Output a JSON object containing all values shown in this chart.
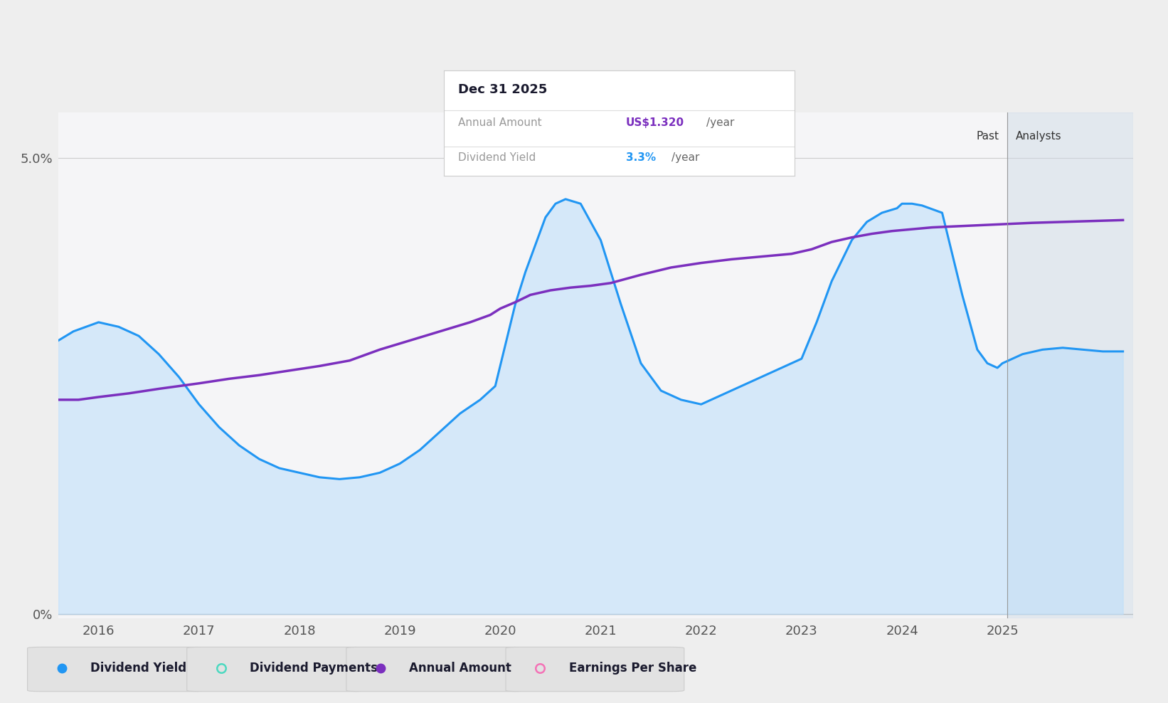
{
  "background_color": "#eeeeee",
  "chart_bg": "#f5f5f7",
  "x_min": 2015.6,
  "x_max": 2026.3,
  "y_min": -0.05,
  "y_max": 5.5,
  "analyst_start": 2025.05,
  "dividend_yield": {
    "color": "#2196F3",
    "fill_color": "#bbdefb",
    "fill_alpha": 0.55,
    "linewidth": 2.2,
    "x": [
      2015.6,
      2015.75,
      2016.0,
      2016.2,
      2016.4,
      2016.6,
      2016.8,
      2017.0,
      2017.2,
      2017.4,
      2017.6,
      2017.8,
      2018.0,
      2018.2,
      2018.4,
      2018.6,
      2018.8,
      2019.0,
      2019.2,
      2019.4,
      2019.6,
      2019.8,
      2019.95,
      2020.05,
      2020.15,
      2020.25,
      2020.35,
      2020.45,
      2020.55,
      2020.65,
      2020.8,
      2021.0,
      2021.2,
      2021.4,
      2021.6,
      2021.8,
      2022.0,
      2022.2,
      2022.4,
      2022.6,
      2022.8,
      2023.0,
      2023.15,
      2023.3,
      2023.5,
      2023.65,
      2023.8,
      2023.95,
      2024.0,
      2024.1,
      2024.2,
      2024.4,
      2024.6,
      2024.75,
      2024.85,
      2024.95,
      2025.0,
      2025.1,
      2025.2,
      2025.4,
      2025.6,
      2025.8,
      2026.0,
      2026.2
    ],
    "y": [
      3.0,
      3.1,
      3.2,
      3.15,
      3.05,
      2.85,
      2.6,
      2.3,
      2.05,
      1.85,
      1.7,
      1.6,
      1.55,
      1.5,
      1.48,
      1.5,
      1.55,
      1.65,
      1.8,
      2.0,
      2.2,
      2.35,
      2.5,
      2.95,
      3.4,
      3.75,
      4.05,
      4.35,
      4.5,
      4.55,
      4.5,
      4.1,
      3.4,
      2.75,
      2.45,
      2.35,
      2.3,
      2.4,
      2.5,
      2.6,
      2.7,
      2.8,
      3.2,
      3.65,
      4.1,
      4.3,
      4.4,
      4.45,
      4.5,
      4.5,
      4.48,
      4.4,
      3.5,
      2.9,
      2.75,
      2.7,
      2.75,
      2.8,
      2.85,
      2.9,
      2.92,
      2.9,
      2.88,
      2.88
    ]
  },
  "annual_amount": {
    "color": "#7B2FBE",
    "linewidth": 2.5,
    "x": [
      2015.6,
      2015.8,
      2016.0,
      2016.3,
      2016.6,
      2017.0,
      2017.3,
      2017.6,
      2017.9,
      2018.2,
      2018.5,
      2018.8,
      2019.1,
      2019.4,
      2019.7,
      2019.9,
      2020.0,
      2020.15,
      2020.3,
      2020.5,
      2020.7,
      2020.9,
      2021.1,
      2021.4,
      2021.7,
      2022.0,
      2022.3,
      2022.6,
      2022.9,
      2023.1,
      2023.3,
      2023.5,
      2023.7,
      2023.9,
      2024.1,
      2024.3,
      2024.5,
      2024.7,
      2024.9,
      2025.1,
      2025.3,
      2025.6,
      2025.9,
      2026.2
    ],
    "y": [
      2.35,
      2.35,
      2.38,
      2.42,
      2.47,
      2.53,
      2.58,
      2.62,
      2.67,
      2.72,
      2.78,
      2.9,
      3.0,
      3.1,
      3.2,
      3.28,
      3.35,
      3.42,
      3.5,
      3.55,
      3.58,
      3.6,
      3.63,
      3.72,
      3.8,
      3.85,
      3.89,
      3.92,
      3.95,
      4.0,
      4.08,
      4.13,
      4.17,
      4.2,
      4.22,
      4.24,
      4.25,
      4.26,
      4.27,
      4.28,
      4.29,
      4.3,
      4.31,
      4.32
    ]
  },
  "tooltip": {
    "date": "Dec 31 2025",
    "annual_amount_label": "Annual Amount",
    "annual_amount_value": "US$1.320",
    "annual_amount_color": "#7B2FBE",
    "annual_amount_unit": "/year",
    "dividend_yield_label": "Dividend Yield",
    "dividend_yield_value": "3.3%",
    "dividend_yield_color": "#2196F3",
    "dividend_yield_unit": "/year"
  },
  "legend_items": [
    {
      "label": "Dividend Yield",
      "color": "#2196F3",
      "filled": true
    },
    {
      "label": "Dividend Payments",
      "color": "#4dd9c0",
      "filled": false
    },
    {
      "label": "Annual Amount",
      "color": "#7B2FBE",
      "filled": true
    },
    {
      "label": "Earnings Per Share",
      "color": "#f472b6",
      "filled": false
    }
  ],
  "xticks": [
    2016,
    2017,
    2018,
    2019,
    2020,
    2021,
    2022,
    2023,
    2024,
    2025
  ],
  "ytick_positions": [
    0.0,
    5.0
  ],
  "ytick_labels": [
    "0%",
    "5.0%"
  ]
}
